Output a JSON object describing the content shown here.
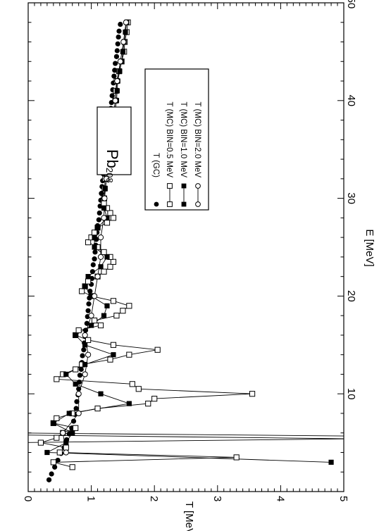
{
  "chart_data": {
    "type": "scatter",
    "orientation": "rotated-90-clockwise",
    "xlabel": "E [MeV]",
    "ylabel": "T [MeV]",
    "xlim": [
      0,
      50
    ],
    "ylim": [
      0,
      5
    ],
    "x_ticks": [
      "10",
      "20",
      "30",
      "40",
      "50"
    ],
    "y_ticks": [
      "0",
      "1",
      "2",
      "3",
      "4",
      "5"
    ],
    "annotation": {
      "mass": "208",
      "element": "Pb"
    },
    "legend_position": "top-center",
    "series": [
      {
        "name": "T (GC)",
        "marker": "filled-circle",
        "line": false,
        "points": [
          [
            1.2,
            0.33
          ],
          [
            1.8,
            0.37
          ],
          [
            2.5,
            0.42
          ],
          [
            3.2,
            0.47
          ],
          [
            3.9,
            0.52
          ],
          [
            4.5,
            0.57
          ],
          [
            5.3,
            0.61
          ],
          [
            5.9,
            0.65
          ],
          [
            6.5,
            0.69
          ],
          [
            7.2,
            0.72
          ],
          [
            7.9,
            0.74
          ],
          [
            8.5,
            0.76
          ],
          [
            9.2,
            0.77
          ],
          [
            9.9,
            0.79
          ],
          [
            10.5,
            0.8
          ],
          [
            11.2,
            0.81
          ],
          [
            11.9,
            0.82
          ],
          [
            12.5,
            0.84
          ],
          [
            13.2,
            0.85
          ],
          [
            13.9,
            0.86
          ],
          [
            14.5,
            0.88
          ],
          [
            15.2,
            0.89
          ],
          [
            15.9,
            0.9
          ],
          [
            16.5,
            0.91
          ],
          [
            17.2,
            0.93
          ],
          [
            17.9,
            0.94
          ],
          [
            18.5,
            0.95
          ],
          [
            19.2,
            0.96
          ],
          [
            19.8,
            0.97
          ],
          [
            20.5,
            0.98
          ],
          [
            21.2,
            1.0
          ],
          [
            21.8,
            1.01
          ],
          [
            22.5,
            1.02
          ],
          [
            23.2,
            1.03
          ],
          [
            23.8,
            1.05
          ],
          [
            24.5,
            1.06
          ],
          [
            25.2,
            1.07
          ],
          [
            25.8,
            1.08
          ],
          [
            26.5,
            1.09
          ],
          [
            27.2,
            1.1
          ],
          [
            27.8,
            1.12
          ],
          [
            28.5,
            1.13
          ],
          [
            29.2,
            1.14
          ],
          [
            29.8,
            1.15
          ],
          [
            30.5,
            1.16
          ],
          [
            31.2,
            1.17
          ],
          [
            31.8,
            1.18
          ],
          [
            32.5,
            1.19
          ],
          [
            33.2,
            1.21
          ],
          [
            33.8,
            1.22
          ],
          [
            34.5,
            1.23
          ],
          [
            35.2,
            1.24
          ],
          [
            35.8,
            1.25
          ],
          [
            36.5,
            1.26
          ],
          [
            37.2,
            1.27
          ],
          [
            37.8,
            1.29
          ],
          [
            38.5,
            1.3
          ],
          [
            39.2,
            1.31
          ],
          [
            39.8,
            1.32
          ],
          [
            40.5,
            1.33
          ],
          [
            41.1,
            1.34
          ],
          [
            41.8,
            1.35
          ],
          [
            42.5,
            1.36
          ],
          [
            43.1,
            1.37
          ],
          [
            43.8,
            1.38
          ],
          [
            44.5,
            1.4
          ],
          [
            45.1,
            1.41
          ],
          [
            45.8,
            1.42
          ],
          [
            46.5,
            1.43
          ],
          [
            47.1,
            1.44
          ],
          [
            47.8,
            1.46
          ]
        ]
      },
      {
        "name": "T (MC) BIN=0.5 MeV",
        "marker": "open-square",
        "line": true,
        "points": [
          [
            2.5,
            0.7
          ],
          [
            3.0,
            0.4
          ],
          [
            3.5,
            3.3
          ],
          [
            4.0,
            0.5
          ],
          [
            4.5,
            0.6
          ],
          [
            5.0,
            0.2
          ],
          [
            5.5,
            0.45
          ],
          [
            6.0,
            0.55
          ],
          [
            6.5,
            0.75
          ],
          [
            7.0,
            0.4
          ],
          [
            7.5,
            0.45
          ],
          [
            8.0,
            0.7
          ],
          [
            8.5,
            1.1
          ],
          [
            9.0,
            1.9
          ],
          [
            9.5,
            2.0
          ],
          [
            10.0,
            3.55
          ],
          [
            10.5,
            1.75
          ],
          [
            11.0,
            1.65
          ],
          [
            11.5,
            0.45
          ],
          [
            12.0,
            0.55
          ],
          [
            12.5,
            0.75
          ],
          [
            13.0,
            0.85
          ],
          [
            13.5,
            1.3
          ],
          [
            14.0,
            1.6
          ],
          [
            14.5,
            2.05
          ],
          [
            15.0,
            1.35
          ],
          [
            15.5,
            0.95
          ],
          [
            16.0,
            0.75
          ],
          [
            16.5,
            0.8
          ],
          [
            17.0,
            1.15
          ],
          [
            17.5,
            1.05
          ],
          [
            18.0,
            1.4
          ],
          [
            18.5,
            1.5
          ],
          [
            19.0,
            1.6
          ],
          [
            19.5,
            1.35
          ],
          [
            20.0,
            1.0
          ],
          [
            20.5,
            0.85
          ],
          [
            21.0,
            0.9
          ],
          [
            21.5,
            0.95
          ],
          [
            22.0,
            1.1
          ],
          [
            22.5,
            1.2
          ],
          [
            23.0,
            1.3
          ],
          [
            23.5,
            1.35
          ],
          [
            24.0,
            1.3
          ],
          [
            24.5,
            1.2
          ],
          [
            25.0,
            1.1
          ],
          [
            25.5,
            0.95
          ],
          [
            26.0,
            1.0
          ],
          [
            26.5,
            1.05
          ],
          [
            27.0,
            1.1
          ],
          [
            27.5,
            1.25
          ],
          [
            28.0,
            1.35
          ],
          [
            28.5,
            1.3
          ],
          [
            29.0,
            1.25
          ],
          [
            29.5,
            1.2
          ],
          [
            30.0,
            1.2
          ],
          [
            31.0,
            1.21
          ],
          [
            32.0,
            1.22
          ],
          [
            33.0,
            1.24
          ],
          [
            34.0,
            1.26
          ],
          [
            35.0,
            1.3
          ],
          [
            36.0,
            1.31
          ],
          [
            37.0,
            1.33
          ],
          [
            38.0,
            1.35
          ],
          [
            39.0,
            1.36
          ],
          [
            40.0,
            1.38
          ],
          [
            41.0,
            1.39
          ],
          [
            42.0,
            1.4
          ],
          [
            43.0,
            1.44
          ],
          [
            44.0,
            1.48
          ],
          [
            45.0,
            1.52
          ],
          [
            46.0,
            1.53
          ],
          [
            47.0,
            1.56
          ],
          [
            48.0,
            1.58
          ]
        ]
      },
      {
        "name": "T (MC) BIN=1.0 MeV",
        "marker": "filled-square",
        "line": true,
        "points": [
          [
            3.0,
            4.8
          ],
          [
            4.0,
            0.3
          ],
          [
            5.0,
            0.6
          ],
          [
            6.0,
            0.7
          ],
          [
            7.0,
            0.4
          ],
          [
            8.0,
            0.65
          ],
          [
            9.0,
            1.6
          ],
          [
            10.0,
            1.15
          ],
          [
            11.0,
            0.75
          ],
          [
            12.0,
            0.6
          ],
          [
            13.0,
            0.9
          ],
          [
            14.0,
            1.35
          ],
          [
            15.0,
            0.9
          ],
          [
            16.0,
            0.75
          ],
          [
            17.0,
            1.0
          ],
          [
            18.0,
            1.2
          ],
          [
            19.0,
            1.25
          ],
          [
            20.0,
            1.0
          ],
          [
            21.0,
            0.9
          ],
          [
            22.0,
            0.95
          ],
          [
            23.0,
            1.15
          ],
          [
            24.0,
            1.25
          ],
          [
            25.0,
            1.05
          ],
          [
            26.0,
            1.05
          ],
          [
            27.0,
            1.1
          ],
          [
            28.0,
            1.25
          ],
          [
            29.0,
            1.2
          ],
          [
            30.0,
            1.21
          ],
          [
            31.0,
            1.22
          ],
          [
            32.0,
            1.24
          ],
          [
            33.0,
            1.27
          ],
          [
            34.0,
            1.29
          ],
          [
            35.0,
            1.31
          ],
          [
            36.0,
            1.33
          ],
          [
            37.0,
            1.35
          ],
          [
            38.0,
            1.37
          ],
          [
            39.0,
            1.38
          ],
          [
            40.0,
            1.4
          ],
          [
            41.0,
            1.41
          ],
          [
            42.0,
            1.42
          ],
          [
            43.0,
            1.45
          ],
          [
            44.0,
            1.48
          ],
          [
            45.0,
            1.5
          ],
          [
            46.0,
            1.52
          ],
          [
            47.0,
            1.54
          ],
          [
            48.0,
            1.56
          ]
        ]
      },
      {
        "name": "T (MC) BIN=2.0 MeV",
        "marker": "open-circle",
        "line": true,
        "points": [
          [
            4.0,
            0.6
          ],
          [
            6.0,
            0.55
          ],
          [
            8.0,
            0.8
          ],
          [
            10.0,
            0.8
          ],
          [
            12.0,
            0.9
          ],
          [
            14.0,
            0.95
          ],
          [
            16.0,
            0.9
          ],
          [
            18.0,
            1.0
          ],
          [
            20.0,
            1.05
          ],
          [
            22.0,
            1.1
          ],
          [
            24.0,
            1.15
          ],
          [
            26.0,
            1.15
          ],
          [
            28.0,
            1.2
          ],
          [
            30.0,
            1.21
          ],
          [
            32.0,
            1.24
          ],
          [
            34.0,
            1.28
          ],
          [
            36.0,
            1.32
          ],
          [
            38.0,
            1.35
          ],
          [
            40.0,
            1.38
          ],
          [
            42.0,
            1.41
          ],
          [
            44.0,
            1.46
          ],
          [
            46.0,
            1.51
          ],
          [
            48.0,
            1.55
          ]
        ]
      }
    ],
    "extra_lines": [
      {
        "series": "T (MC) BIN=0.5 MeV",
        "x": [
          5.0,
          5.5
        ],
        "y": [
          -0.3,
          6.5
        ]
      },
      {
        "series": "T (MC) BIN=0.5 MeV",
        "x": [
          5.6,
          6.0
        ],
        "y": [
          6.5,
          -0.3
        ]
      },
      {
        "series": "T (MC) BIN=1.0 MeV",
        "x": [
          5.3,
          5.8
        ],
        "y": [
          6.5,
          -0.3
        ]
      }
    ]
  }
}
